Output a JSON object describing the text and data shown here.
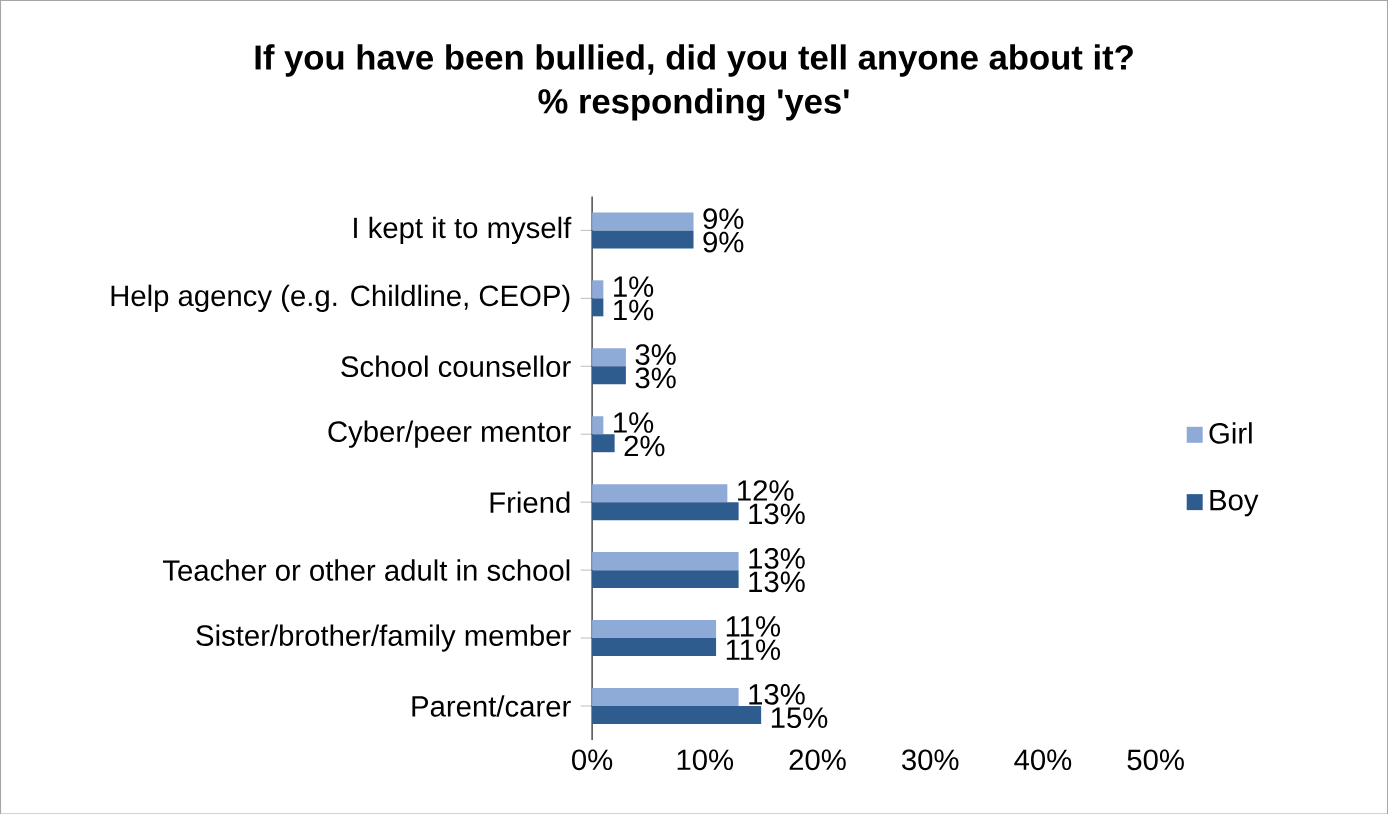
{
  "chart_data": {
    "type": "bar",
    "orientation": "horizontal",
    "title": "If you have been bullied, did you tell anyone about it?",
    "subtitle": "% responding 'yes'",
    "categories": [
      "I kept it to myself",
      "Help agency (e.g. Childline, CEOP)",
      "School counsellor",
      "Cyber/peer mentor",
      "Friend",
      "Teacher or other adult in school",
      "Sister/brother/family member",
      "Parent/carer"
    ],
    "series": [
      {
        "name": "Girl",
        "color": "#8eaad6",
        "values": [
          9,
          1,
          3,
          1,
          12,
          13,
          11,
          13
        ],
        "value_labels": [
          "9%",
          "1%",
          "3%",
          "1%",
          "12%",
          "13%",
          "11%",
          "13%"
        ]
      },
      {
        "name": "Boy",
        "color": "#2f5c8f",
        "values": [
          9,
          1,
          3,
          2,
          13,
          13,
          11,
          15
        ],
        "value_labels": [
          "9%",
          "1%",
          "3%",
          "2%",
          "13%",
          "13%",
          "11%",
          "15%"
        ]
      }
    ],
    "xlim": [
      0,
      50
    ],
    "xticks": [
      {
        "value": 0,
        "label": "0%"
      },
      {
        "value": 10,
        "label": "10%"
      },
      {
        "value": 20,
        "label": "20%"
      },
      {
        "value": 30,
        "label": "30%"
      },
      {
        "value": 40,
        "label": "40%"
      },
      {
        "value": 50,
        "label": "50%"
      }
    ],
    "legend": "right"
  }
}
